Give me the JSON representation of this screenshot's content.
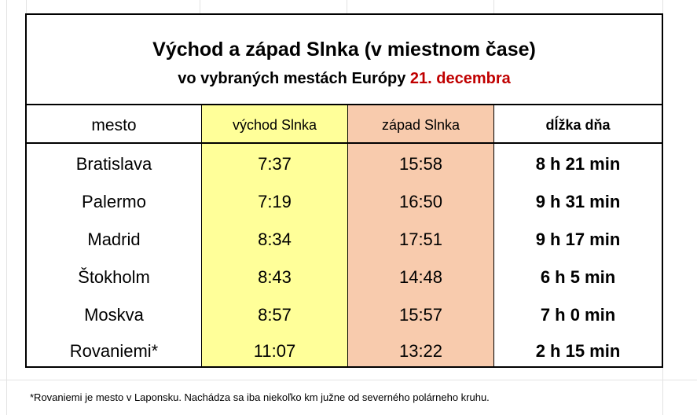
{
  "title": {
    "line1": "Východ a západ Slnka (v miestnom čase)",
    "line2_prefix": "vo vybraných mestách Európy",
    "line2_date": "21. decembra"
  },
  "columns": {
    "city": "mesto",
    "sunrise": "východ Slnka",
    "sunset": "západ Slnka",
    "day_length": "dĺžka dňa"
  },
  "rows": [
    {
      "city": "Bratislava",
      "sunrise": "7:37",
      "sunset": "15:58",
      "day_length": "8 h 21 min"
    },
    {
      "city": "Palermo",
      "sunrise": "7:19",
      "sunset": "16:50",
      "day_length": "9 h 31 min"
    },
    {
      "city": "Madrid",
      "sunrise": "8:34",
      "sunset": "17:51",
      "day_length": "9 h 17 min"
    },
    {
      "city": "Štokholm",
      "sunrise": "8:43",
      "sunset": "14:48",
      "day_length": "6 h 5 min"
    },
    {
      "city": "Moskva",
      "sunrise": "8:57",
      "sunset": "15:57",
      "day_length": "7 h 0 min"
    },
    {
      "city": "Rovaniemi*",
      "sunrise": "11:07",
      "sunset": "13:22",
      "day_length": "2 h 15 min"
    }
  ],
  "footnote": "*Rovaniemi je mesto v Laponsku. Nachádza sa iba niekoľko km južne od severného polárneho kruhu.",
  "colors": {
    "sunrise_fill": "#ffff99",
    "sunset_fill": "#f8cbad",
    "date_accent": "#c00000"
  }
}
